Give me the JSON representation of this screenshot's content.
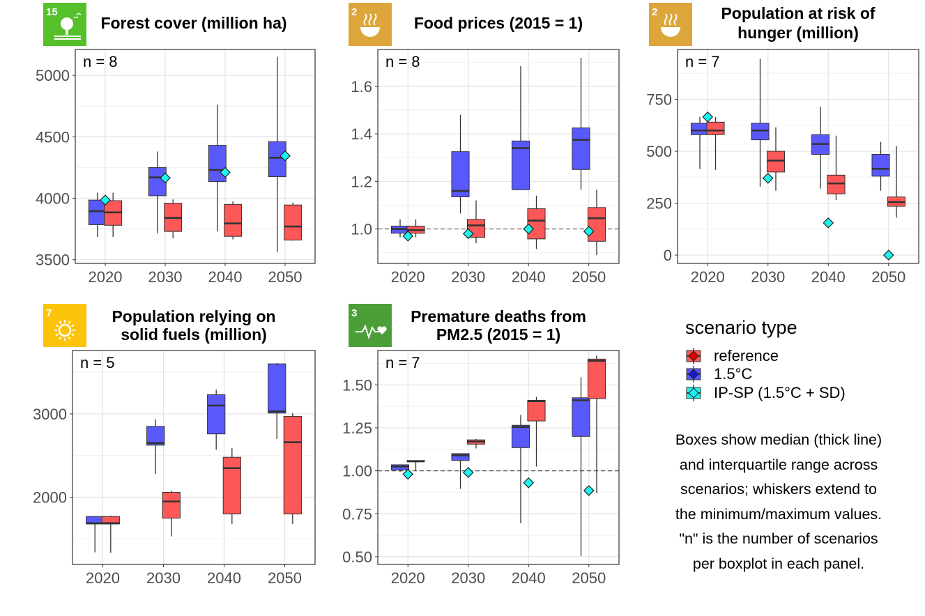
{
  "colors": {
    "reference": "#fc5858",
    "onepointfive": "#5959fb",
    "ipsp": "#1bf3ef",
    "reference_legend": "#e00000",
    "onepointfive_legend": "#1818d0",
    "sdg15": "#56c02b",
    "sdg2": "#dda63a",
    "sdg7": "#fcc30b",
    "sdg3": "#4c9f38"
  },
  "legend": {
    "title": "scenario type",
    "items": [
      {
        "key": "reference",
        "label": "reference"
      },
      {
        "key": "onepointfive",
        "label": "1.5°C"
      },
      {
        "key": "ipsp",
        "label": "IP-SP (1.5°C + SD)"
      }
    ]
  },
  "caption": [
    "Boxes show median (thick line)",
    "and interquartile range across",
    "scenarios; whiskers extend to",
    "the minimum/maximum values.",
    "\"n\" is the number of scenarios",
    "per boxplot in each panel."
  ],
  "chart_data": [
    {
      "type": "boxplot",
      "title": [
        "Forest cover (million ha)"
      ],
      "icon": {
        "goal": "15",
        "name": "life-on-land-icon",
        "color": "#56c02b"
      },
      "n_label": "n = 8",
      "categories": [
        "2020",
        "2030",
        "2040",
        "2050"
      ],
      "ylim": [
        3470,
        5210
      ],
      "yticks": [
        3500,
        4000,
        4500,
        5000
      ],
      "yminor": [
        3750,
        4250,
        4750
      ],
      "grid": true,
      "series": [
        {
          "key": "onepointfive",
          "boxes": [
            {
              "min": 3685,
              "q1": 3785,
              "median": 3895,
              "q3": 3985,
              "max": 4045
            },
            {
              "min": 3715,
              "q1": 4020,
              "median": 4170,
              "q3": 4250,
              "max": 4380
            },
            {
              "min": 3730,
              "q1": 4135,
              "median": 4230,
              "q3": 4430,
              "max": 4760
            },
            {
              "min": 3560,
              "q1": 4175,
              "median": 4330,
              "q3": 4460,
              "max": 5150
            }
          ]
        },
        {
          "key": "reference",
          "boxes": [
            {
              "min": 3685,
              "q1": 3780,
              "median": 3885,
              "q3": 3980,
              "max": 4045
            },
            {
              "min": 3675,
              "q1": 3730,
              "median": 3840,
              "q3": 3960,
              "max": 3990
            },
            {
              "min": 3665,
              "q1": 3690,
              "median": 3795,
              "q3": 3950,
              "max": 3975
            },
            {
              "min": 3655,
              "q1": 3660,
              "median": 3770,
              "q3": 3945,
              "max": 3965
            }
          ]
        }
      ],
      "points": [
        3985,
        4165,
        4210,
        4345
      ]
    },
    {
      "type": "boxplot",
      "title": [
        "Food prices (2015 = 1)"
      ],
      "icon": {
        "goal": "2",
        "name": "zero-hunger-icon",
        "color": "#dda63a"
      },
      "n_label": "n = 8",
      "categories": [
        "2020",
        "2030",
        "2040",
        "2050"
      ],
      "ylim": [
        0.855,
        1.755
      ],
      "yticks": [
        1.0,
        1.2,
        1.4,
        1.6
      ],
      "yminor": [
        0.9,
        1.1,
        1.3,
        1.5,
        1.7
      ],
      "grid": true,
      "reference_line": 1.0,
      "series": [
        {
          "key": "onepointfive",
          "boxes": [
            {
              "min": 0.965,
              "q1": 0.982,
              "median": 1.0,
              "q3": 1.012,
              "max": 1.04
            },
            {
              "min": 1.065,
              "q1": 1.135,
              "median": 1.16,
              "q3": 1.325,
              "max": 1.48
            },
            {
              "min": 1.165,
              "q1": 1.165,
              "median": 1.34,
              "q3": 1.37,
              "max": 1.685
            },
            {
              "min": 1.165,
              "q1": 1.25,
              "median": 1.375,
              "q3": 1.425,
              "max": 1.72
            }
          ]
        },
        {
          "key": "reference",
          "boxes": [
            {
              "min": 0.965,
              "q1": 0.982,
              "median": 0.995,
              "q3": 1.012,
              "max": 1.04
            },
            {
              "min": 0.94,
              "q1": 0.965,
              "median": 1.015,
              "q3": 1.04,
              "max": 1.12
            },
            {
              "min": 0.915,
              "q1": 0.958,
              "median": 1.035,
              "q3": 1.085,
              "max": 1.14
            },
            {
              "min": 0.89,
              "q1": 0.948,
              "median": 1.045,
              "q3": 1.09,
              "max": 1.165
            }
          ]
        }
      ],
      "points": [
        0.97,
        0.98,
        1.0,
        0.99
      ]
    },
    {
      "type": "boxplot",
      "title": [
        "Population at risk of",
        "hunger (million)"
      ],
      "icon": {
        "goal": "2",
        "name": "zero-hunger-icon",
        "color": "#dda63a"
      },
      "n_label": "n = 7",
      "categories": [
        "2020",
        "2030",
        "2040",
        "2050"
      ],
      "ylim": [
        -40,
        990
      ],
      "yticks": [
        0,
        250,
        500,
        750
      ],
      "yminor": [
        125,
        375,
        625,
        875
      ],
      "grid": true,
      "series": [
        {
          "key": "onepointfive",
          "boxes": [
            {
              "min": 415,
              "q1": 580,
              "median": 600,
              "q3": 635,
              "max": 665
            },
            {
              "min": 330,
              "q1": 555,
              "median": 600,
              "q3": 635,
              "max": 945
            },
            {
              "min": 320,
              "q1": 485,
              "median": 535,
              "q3": 580,
              "max": 715
            },
            {
              "min": 310,
              "q1": 380,
              "median": 415,
              "q3": 485,
              "max": 545
            }
          ]
        },
        {
          "key": "reference",
          "boxes": [
            {
              "min": 410,
              "q1": 580,
              "median": 600,
              "q3": 640,
              "max": 665
            },
            {
              "min": 310,
              "q1": 400,
              "median": 455,
              "q3": 500,
              "max": 615
            },
            {
              "min": 265,
              "q1": 295,
              "median": 345,
              "q3": 385,
              "max": 575
            },
            {
              "min": 180,
              "q1": 235,
              "median": 255,
              "q3": 280,
              "max": 525
            }
          ]
        }
      ],
      "points": [
        665,
        370,
        155,
        0
      ]
    },
    {
      "type": "boxplot",
      "title": [
        "Population relying on",
        "solid fuels (million)"
      ],
      "icon": {
        "goal": "7",
        "name": "clean-energy-icon",
        "color": "#fcc30b"
      },
      "n_label": "n = 5",
      "categories": [
        "2020",
        "2030",
        "2040",
        "2050"
      ],
      "ylim": [
        1195,
        3760
      ],
      "yticks": [
        2000,
        3000
      ],
      "yminor": [
        1500,
        2500,
        3500
      ],
      "grid": true,
      "series": [
        {
          "key": "onepointfive",
          "boxes": [
            {
              "min": 1340,
              "q1": 1680,
              "median": 1690,
              "q3": 1770,
              "max": 1775
            },
            {
              "min": 2280,
              "q1": 2625,
              "median": 2650,
              "q3": 2850,
              "max": 2935
            },
            {
              "min": 2570,
              "q1": 2760,
              "median": 3100,
              "q3": 3230,
              "max": 3290
            },
            {
              "min": 2700,
              "q1": 3010,
              "median": 3030,
              "q3": 3600,
              "max": 3610
            }
          ]
        },
        {
          "key": "reference",
          "boxes": [
            {
              "min": 1335,
              "q1": 1680,
              "median": 1690,
              "q3": 1770,
              "max": 1780
            },
            {
              "min": 1530,
              "q1": 1750,
              "median": 1950,
              "q3": 2060,
              "max": 2080
            },
            {
              "min": 1680,
              "q1": 1800,
              "median": 2350,
              "q3": 2480,
              "max": 2590
            },
            {
              "min": 1680,
              "q1": 1800,
              "median": 2660,
              "q3": 2970,
              "max": 3010
            }
          ]
        }
      ],
      "points": []
    },
    {
      "type": "boxplot",
      "title": [
        "Premature deaths from",
        "PM2.5 (2015 = 1)"
      ],
      "icon": {
        "goal": "3",
        "name": "good-health-icon",
        "color": "#4c9f38"
      },
      "n_label": "n = 7",
      "categories": [
        "2020",
        "2030",
        "2040",
        "2050"
      ],
      "ylim": [
        0.455,
        1.7
      ],
      "yticks": [
        0.5,
        0.75,
        1.0,
        1.25,
        1.5
      ],
      "yminor": [
        0.625,
        0.875,
        1.125,
        1.375,
        1.625
      ],
      "grid": true,
      "reference_line": 1.0,
      "series": [
        {
          "key": "onepointfive",
          "boxes": [
            {
              "min": 0.995,
              "q1": 1.005,
              "median": 1.025,
              "q3": 1.035,
              "max": 1.035
            },
            {
              "min": 0.895,
              "q1": 1.06,
              "median": 1.09,
              "q3": 1.1,
              "max": 1.1
            },
            {
              "min": 0.695,
              "q1": 1.135,
              "median": 1.255,
              "q3": 1.265,
              "max": 1.325
            },
            {
              "min": 0.505,
              "q1": 1.2,
              "median": 1.41,
              "q3": 1.425,
              "max": 1.545
            }
          ]
        },
        {
          "key": "reference",
          "boxes": [
            {
              "min": 1.0,
              "q1": 1.055,
              "median": 1.055,
              "q3": 1.06,
              "max": 1.06
            },
            {
              "min": 1.13,
              "q1": 1.155,
              "median": 1.17,
              "q3": 1.18,
              "max": 1.185
            },
            {
              "min": 1.025,
              "q1": 1.29,
              "median": 1.405,
              "q3": 1.41,
              "max": 1.43
            },
            {
              "min": 0.87,
              "q1": 1.42,
              "median": 1.64,
              "q3": 1.65,
              "max": 1.67
            }
          ]
        }
      ],
      "points": [
        0.98,
        0.99,
        0.93,
        0.885
      ]
    }
  ]
}
